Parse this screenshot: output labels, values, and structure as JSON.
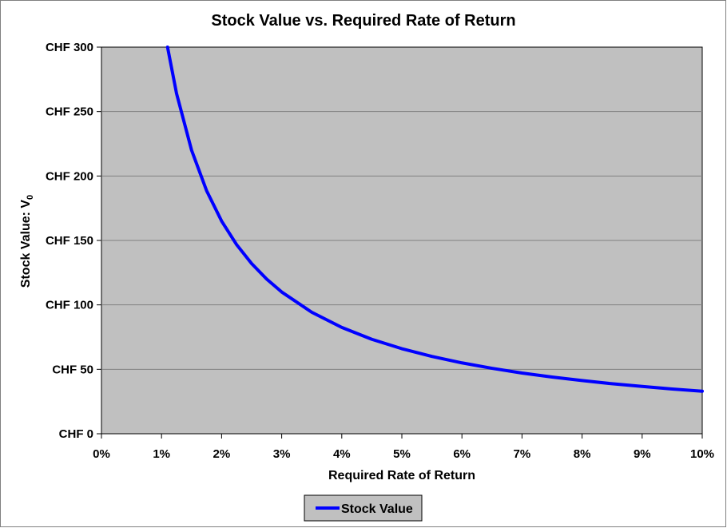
{
  "chart_data": {
    "type": "line",
    "title": "Stock Value vs. Required Rate of Return",
    "xlabel": "Required Rate of Return",
    "ylabel": "Stock Value: V",
    "ylabel_subscript": "0",
    "xlim": [
      0,
      0.1
    ],
    "ylim": [
      0,
      300
    ],
    "x_ticks": [
      0,
      0.01,
      0.02,
      0.03,
      0.04,
      0.05,
      0.06,
      0.07,
      0.08,
      0.09,
      0.1
    ],
    "x_tick_labels": [
      "0%",
      "1%",
      "2%",
      "3%",
      "4%",
      "5%",
      "6%",
      "7%",
      "8%",
      "9%",
      "10%"
    ],
    "y_ticks": [
      0,
      50,
      100,
      150,
      200,
      250,
      300
    ],
    "y_tick_labels": [
      "CHF 0",
      "CHF 50",
      "CHF 100",
      "CHF 150",
      "CHF 200",
      "CHF 250",
      "CHF 300"
    ],
    "grid": "horizontal",
    "legend_position": "bottom-center",
    "series": [
      {
        "name": "Stock Value",
        "color": "#0000ff",
        "x": [
          0.011,
          0.0125,
          0.015,
          0.0175,
          0.02,
          0.0225,
          0.025,
          0.0275,
          0.03,
          0.035,
          0.04,
          0.045,
          0.05,
          0.055,
          0.06,
          0.065,
          0.07,
          0.075,
          0.08,
          0.085,
          0.09,
          0.095,
          0.1
        ],
        "y": [
          300,
          264,
          220,
          188.6,
          165,
          146.7,
          132,
          120,
          110,
          94.3,
          82.5,
          73.3,
          66,
          60,
          55,
          50.8,
          47.1,
          44,
          41.3,
          38.8,
          36.7,
          34.7,
          33
        ]
      }
    ],
    "colors": {
      "plot_background": "#c0c0c0",
      "gridline": "#808080",
      "series_line": "#0000ff"
    }
  }
}
